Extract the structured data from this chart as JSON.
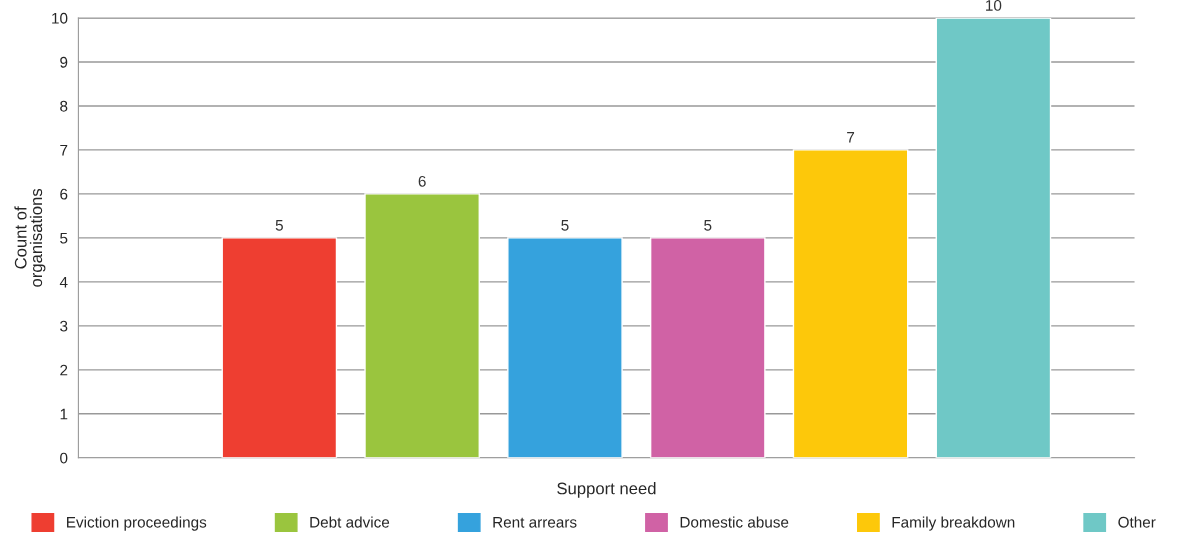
{
  "chart_data": {
    "type": "bar",
    "xlabel": "Support need",
    "ylabel": "Count of\norganisations",
    "categories": [
      null
    ],
    "series": [
      {
        "name": "Eviction proceedings",
        "color": "#ee3e31",
        "values": [
          5
        ]
      },
      {
        "name": "Debt advice",
        "color": "#9ac53e",
        "values": [
          6
        ]
      },
      {
        "name": "Rent arrears",
        "color": "#35a2dd",
        "values": [
          5
        ]
      },
      {
        "name": "Domestic abuse",
        "color": "#d062a5",
        "values": [
          5
        ]
      },
      {
        "name": "Family breakdown",
        "color": "#fdc80a",
        "values": [
          7
        ]
      },
      {
        "name": "Other",
        "color": "#6fc8c6",
        "values": [
          10
        ]
      }
    ],
    "ylim": [
      0,
      10
    ],
    "yticks": [
      0,
      1,
      2,
      3,
      4,
      5,
      6,
      7,
      8,
      9,
      10
    ],
    "grid": "y",
    "legend": "bottom",
    "data_labels": true
  }
}
